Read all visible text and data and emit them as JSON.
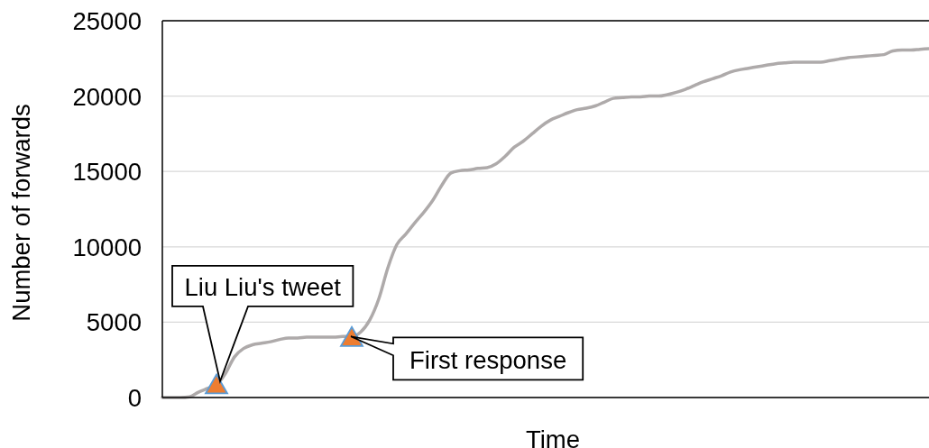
{
  "chart_data": {
    "type": "line",
    "xlabel": "Time",
    "ylabel": "Number of forwards",
    "categories": [
      null,
      null,
      null,
      null,
      null,
      null,
      null,
      null,
      null,
      null,
      null,
      null,
      null,
      null,
      null,
      null,
      null,
      null,
      null,
      null,
      null,
      null,
      null,
      null,
      null,
      null,
      null,
      null,
      null,
      null,
      null,
      null,
      null,
      null,
      null,
      null,
      null,
      null,
      null,
      null,
      null,
      null,
      null,
      null,
      null,
      null,
      null,
      null,
      null,
      null,
      null,
      null,
      null,
      null,
      null,
      null,
      null,
      null,
      null,
      null,
      null,
      null,
      null,
      null,
      null,
      null,
      null,
      null,
      null,
      null,
      null,
      null,
      null,
      null,
      null,
      null,
      null,
      null,
      null,
      null,
      null,
      null,
      null,
      null,
      null,
      null
    ],
    "ylim": [
      0,
      25000
    ],
    "yticks": [
      0,
      5000,
      10000,
      15000,
      20000,
      25000
    ],
    "grid": "y",
    "series": [
      {
        "color": "#aeaaaa",
        "values": [
          0,
          0,
          0,
          50,
          350,
          600,
          850,
          1600,
          2700,
          3250,
          3500,
          3600,
          3700,
          3850,
          3950,
          3950,
          4000,
          4000,
          4000,
          4000,
          4050,
          4050,
          4350,
          5150,
          6550,
          8600,
          10150,
          10850,
          11600,
          12300,
          13100,
          14100,
          14900,
          15050,
          15100,
          15200,
          15250,
          15500,
          16000,
          16600,
          17000,
          17500,
          18000,
          18400,
          18650,
          18900,
          19100,
          19200,
          19350,
          19600,
          19850,
          19900,
          19950,
          19950,
          20000,
          20000,
          20100,
          20250,
          20450,
          20700,
          20950,
          21150,
          21350,
          21600,
          21750,
          21850,
          21950,
          22050,
          22150,
          22200,
          22250,
          22250,
          22250,
          22250,
          22350,
          22450,
          22550,
          22600,
          22650,
          22700,
          22750,
          23000,
          23050,
          23050,
          23100,
          23150
        ]
      },
      {
        "type": "scatter",
        "marker": "triangle",
        "color": "#ed7d31",
        "values": [
          null,
          null,
          null,
          null,
          null,
          null,
          900,
          null,
          null,
          null,
          null,
          null,
          null,
          null,
          null,
          null,
          null,
          null,
          null,
          null,
          null,
          4050,
          null,
          null,
          null,
          null,
          null,
          null,
          null,
          null,
          null,
          null,
          null,
          null,
          null,
          null,
          null,
          null,
          null,
          null,
          null,
          null,
          null,
          null,
          null,
          null,
          null,
          null,
          null,
          null,
          null,
          null,
          null,
          null,
          null,
          null,
          null,
          null,
          null,
          null,
          null,
          null,
          null,
          null,
          null,
          null,
          null,
          null,
          null,
          null,
          null,
          null,
          null,
          null,
          null,
          null,
          null,
          null,
          null,
          null,
          null,
          null,
          null,
          null,
          null,
          null
        ]
      }
    ],
    "annotations": [
      "Liu Liu's tweet",
      "First response"
    ]
  }
}
